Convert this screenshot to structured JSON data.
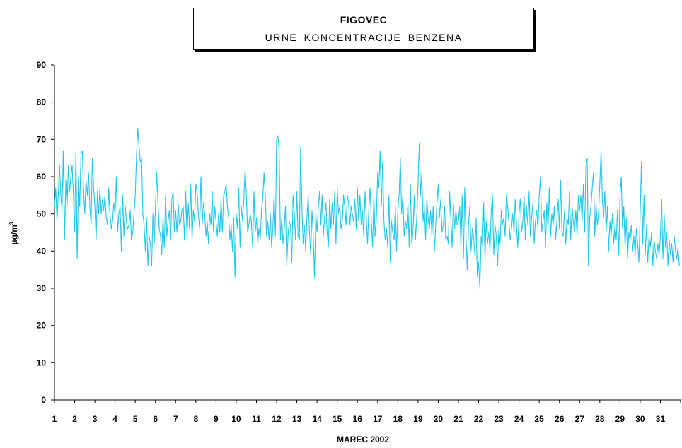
{
  "header": {
    "title": "FIGOVEC",
    "subtitle": "URNE KONCENTRACIJE BENZENA"
  },
  "chart_data": {
    "type": "line",
    "title": "FIGOVEC",
    "subtitle": "URNE KONCENTRACIJE BENZENA",
    "xlabel": "MAREC 2002",
    "ylabel": "µg/m³",
    "ylabel_base": "µg/m",
    "ylabel_sup": "3",
    "ylim": [
      0,
      90
    ],
    "yticks": [
      0,
      10,
      20,
      30,
      40,
      50,
      60,
      70,
      80,
      90
    ],
    "xticks": [
      "1",
      "2",
      "3",
      "4",
      "5",
      "6",
      "7",
      "8",
      "9",
      "10",
      "11",
      "12",
      "13",
      "14",
      "15",
      "16",
      "17",
      "18",
      "19",
      "20",
      "21",
      "22",
      "23",
      "24",
      "25",
      "26",
      "27",
      "28",
      "29",
      "30",
      "31"
    ],
    "grid": false,
    "line_color": "#1ec8f0",
    "series": [
      {
        "daily_values": [
          [
            52,
            57,
            48,
            55,
            63,
            55,
            51,
            67,
            43,
            59,
            52,
            63,
            56,
            60,
            63,
            55
          ],
          [
            45,
            67,
            38,
            60,
            52,
            66,
            67,
            57,
            50,
            59,
            55,
            61,
            52,
            47,
            65,
            57
          ],
          [
            52,
            43,
            56,
            50,
            57,
            50,
            54,
            51,
            55,
            49,
            47,
            57,
            50,
            46,
            48,
            53
          ],
          [
            50,
            60,
            45,
            50,
            52,
            40,
            55,
            44,
            52,
            48,
            46,
            47,
            51,
            43,
            45,
            50
          ],
          [
            55,
            66,
            73,
            68,
            64,
            65,
            50,
            47,
            40,
            49,
            36,
            44,
            42,
            36,
            50,
            42
          ],
          [
            52,
            61,
            53,
            46,
            44,
            39,
            49,
            41,
            55,
            44,
            48,
            51,
            43,
            54,
            56,
            45
          ],
          [
            51,
            45,
            53,
            47,
            48,
            51,
            52,
            43,
            56,
            44,
            53,
            46,
            58,
            43,
            51,
            48
          ],
          [
            58,
            56,
            50,
            46,
            60,
            47,
            53,
            50,
            44,
            48,
            42,
            50,
            47,
            56,
            45,
            52
          ],
          [
            48,
            44,
            50,
            45,
            54,
            45,
            55,
            56,
            58,
            52,
            49,
            43,
            47,
            40,
            49,
            33
          ],
          [
            50,
            46,
            57,
            41,
            52,
            48,
            54,
            62,
            55,
            45,
            47,
            50,
            48,
            41,
            56,
            45
          ],
          [
            49,
            42,
            46,
            43,
            51,
            54,
            61,
            55,
            44,
            48,
            43,
            50,
            41,
            46,
            55,
            44
          ],
          [
            70,
            71,
            67,
            43,
            49,
            42,
            46,
            52,
            36,
            44,
            48,
            47,
            37,
            55,
            50,
            43
          ],
          [
            56,
            44,
            43,
            68,
            52,
            42,
            47,
            40,
            49,
            55,
            45,
            39,
            51,
            44,
            33,
            50
          ],
          [
            45,
            52,
            56,
            47,
            55,
            44,
            49,
            53,
            45,
            41,
            54,
            46,
            53,
            47,
            56,
            42
          ],
          [
            57,
            50,
            52,
            46,
            48,
            55,
            52,
            47,
            55,
            53,
            47,
            52,
            50,
            48,
            54,
            46
          ],
          [
            57,
            48,
            55,
            47,
            51,
            44,
            56,
            49,
            42,
            51,
            57,
            48,
            41,
            55,
            44,
            49
          ],
          [
            61,
            57,
            67,
            52,
            64,
            48,
            43,
            46,
            41,
            55,
            37,
            48,
            45,
            43,
            52,
            40
          ],
          [
            51,
            55,
            65,
            50,
            55,
            44,
            48,
            46,
            53,
            41,
            58,
            42,
            45,
            55,
            43,
            49
          ],
          [
            58,
            69,
            55,
            61,
            48,
            52,
            43,
            54,
            49,
            46,
            51,
            44,
            52,
            40,
            47,
            53
          ],
          [
            58,
            49,
            54,
            45,
            47,
            52,
            43,
            44,
            42,
            56,
            49,
            41,
            53,
            46,
            51,
            47
          ],
          [
            48,
            52,
            41,
            55,
            38,
            57,
            44,
            35,
            47,
            52,
            40,
            46,
            44,
            39,
            49,
            33
          ],
          [
            37,
            30,
            44,
            41,
            53,
            38,
            48,
            42,
            45,
            40,
            51,
            55,
            39,
            47,
            44,
            36
          ],
          [
            46,
            42,
            51,
            47,
            49,
            44,
            55,
            52,
            48,
            43,
            46,
            50,
            45,
            54,
            47,
            41
          ],
          [
            50,
            54,
            45,
            48,
            55,
            43,
            52,
            47,
            56,
            44,
            49,
            53,
            42,
            48,
            51,
            46
          ],
          [
            55,
            60,
            45,
            48,
            51,
            41,
            53,
            46,
            57,
            44,
            50,
            47,
            52,
            43,
            48,
            54
          ],
          [
            46,
            59,
            45,
            44,
            51,
            42,
            49,
            47,
            56,
            43,
            52,
            48,
            45,
            51,
            44,
            55
          ],
          [
            51,
            55,
            48,
            58,
            45,
            63,
            65,
            36,
            49,
            52,
            57,
            61,
            44,
            53,
            47,
            50
          ],
          [
            58,
            67,
            54,
            49,
            56,
            45,
            52,
            40,
            48,
            44,
            50,
            42,
            47,
            43,
            51,
            39
          ],
          [
            55,
            60,
            46,
            52,
            41,
            49,
            38,
            45,
            43,
            47,
            40,
            44,
            39,
            46,
            42,
            37
          ],
          [
            50,
            64,
            42,
            55,
            39,
            47,
            37,
            44,
            41,
            45,
            36,
            43,
            40,
            38,
            42,
            39
          ],
          [
            44,
            54,
            38,
            50,
            41,
            45,
            36,
            43,
            39,
            42,
            37,
            44,
            40,
            38,
            41,
            36
          ]
        ]
      }
    ]
  }
}
